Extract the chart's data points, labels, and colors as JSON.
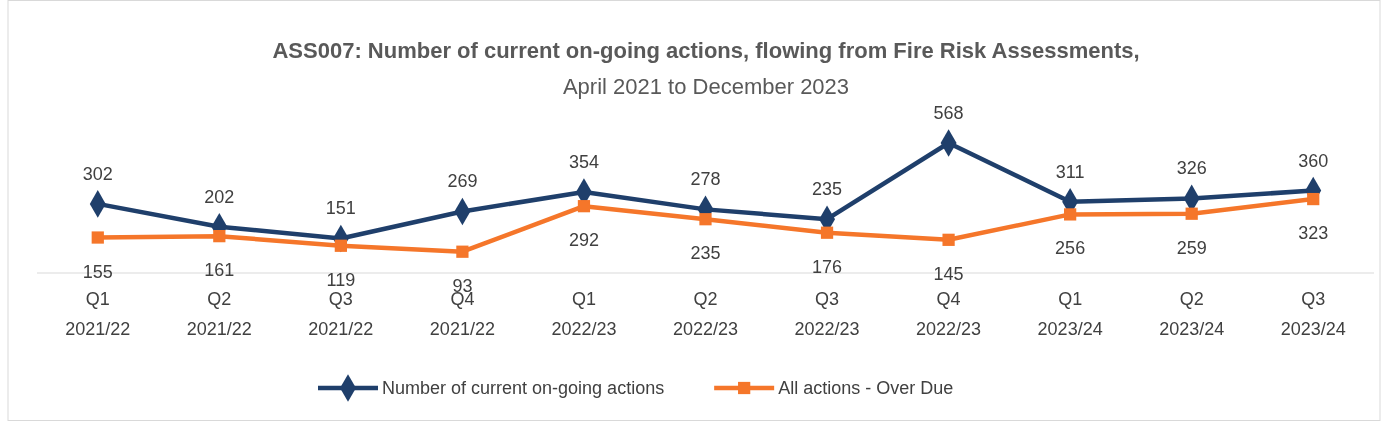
{
  "chart_data": {
    "type": "line",
    "title": "ASS007: Number of current on-going actions, flowing from Fire Risk Assessments,",
    "subtitle": "April 2021 to December 2023",
    "categories": [
      "Q1\n2021/22",
      "Q2\n2021/22",
      "Q3\n2021/22",
      "Q4\n2021/22",
      "Q1\n2022/23",
      "Q2\n2022/23",
      "Q3\n2022/23",
      "Q4\n2022/23",
      "Q1\n2023/24",
      "Q2\n2023/24",
      "Q3\n2023/24"
    ],
    "series": [
      {
        "name": "Number of current on-going actions",
        "color": "#1f3f6b",
        "marker": "diamond",
        "values": [
          302,
          202,
          151,
          269,
          354,
          278,
          235,
          568,
          311,
          326,
          360
        ]
      },
      {
        "name": "All actions - Over Due",
        "color": "#f5762a",
        "marker": "square",
        "values": [
          155,
          161,
          119,
          93,
          292,
          235,
          176,
          145,
          256,
          259,
          323
        ]
      }
    ],
    "data_labels": true,
    "legend": "bottom"
  }
}
